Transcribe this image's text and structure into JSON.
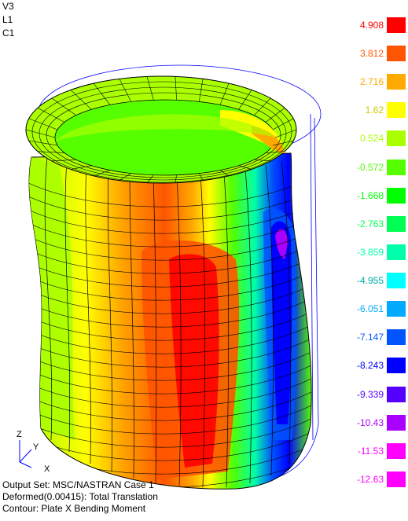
{
  "view_labels": {
    "view": "V3",
    "layer": "L1",
    "case": "C1"
  },
  "triad": {
    "z": "Z",
    "y": "Y",
    "x": "X"
  },
  "legend": [
    {
      "value": "4.908",
      "color": "#ff0000"
    },
    {
      "value": "3.812",
      "color": "#ff5500"
    },
    {
      "value": "2.716",
      "color": "#ffaa00"
    },
    {
      "value": "1.62",
      "color": "#ffff00"
    },
    {
      "value": "0.524",
      "color": "#aaff00"
    },
    {
      "value": "-0.572",
      "color": "#55ff00"
    },
    {
      "value": "-1.668",
      "color": "#00ff00"
    },
    {
      "value": "-2.763",
      "color": "#00ff55"
    },
    {
      "value": "-3.859",
      "color": "#00ffaa"
    },
    {
      "value": "-4.955",
      "color": "#00ffff"
    },
    {
      "value": "-6.051",
      "color": "#00aaff"
    },
    {
      "value": "-7.147",
      "color": "#0055ff"
    },
    {
      "value": "-8.243",
      "color": "#0000ff"
    },
    {
      "value": "-9.339",
      "color": "#5500ff"
    },
    {
      "value": "-10.43",
      "color": "#aa00ff"
    },
    {
      "value": "-11.53",
      "color": "#ff00ff"
    },
    {
      "value": "-12.63",
      "color": "#ff00ff"
    }
  ],
  "footer": {
    "output_set": "Output Set: MSC/NASTRAN Case 1",
    "deformed": "Deformed(0.00415): Total Translation",
    "contour": "Contour: Plate X Bending Moment"
  }
}
